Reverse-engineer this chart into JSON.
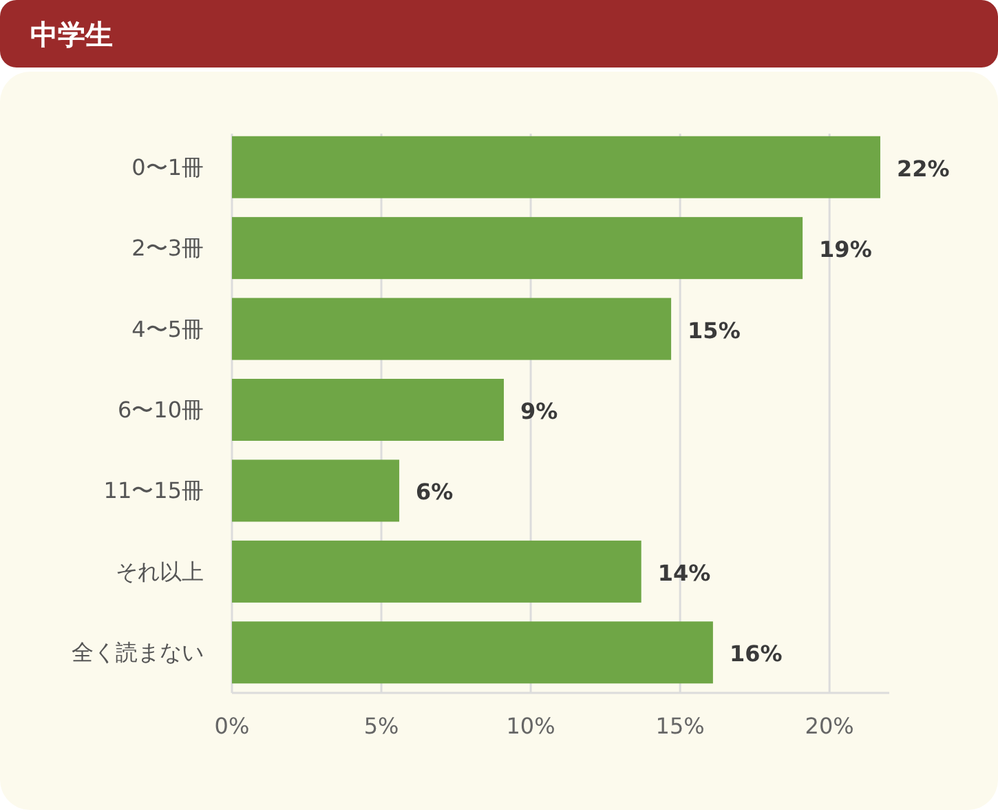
{
  "chart_data": {
    "type": "bar",
    "orientation": "horizontal",
    "title": "中学生",
    "categories": [
      "0〜1冊",
      "2〜3冊",
      "4〜5冊",
      "6〜10冊",
      "11〜15冊",
      "それ以上",
      "全く読まない"
    ],
    "values": [
      21.7,
      19.1,
      14.7,
      9.1,
      5.6,
      13.7,
      16.1
    ],
    "value_labels": [
      "22%",
      "19%",
      "15%",
      "9%",
      "6%",
      "14%",
      "16%"
    ],
    "color": "#6fa646",
    "xlim": [
      0,
      22
    ],
    "xticks": [
      {
        "value": 0,
        "label": "0%"
      },
      {
        "value": 5,
        "label": "5%"
      },
      {
        "value": 10,
        "label": "10%"
      },
      {
        "value": 15,
        "label": "15%"
      },
      {
        "value": 20,
        "label": "20%"
      }
    ],
    "grid": "x"
  }
}
